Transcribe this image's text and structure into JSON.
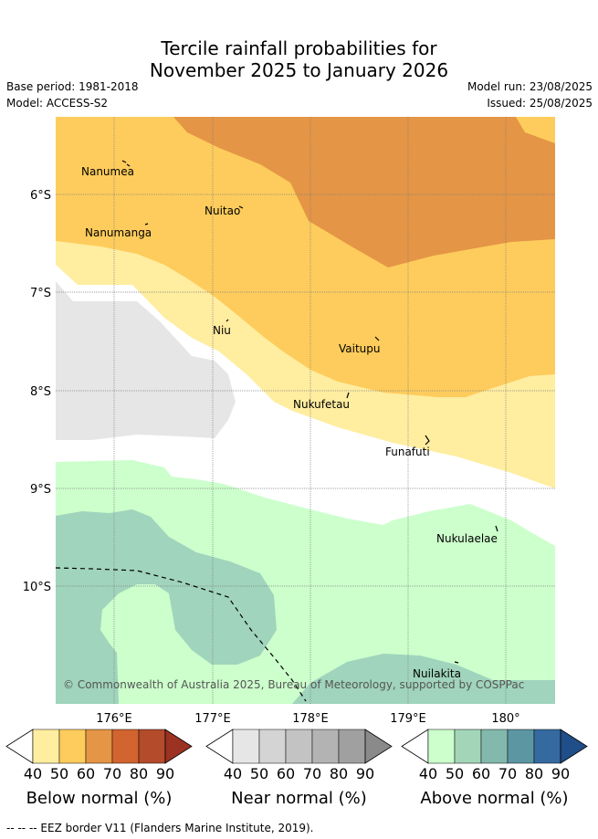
{
  "title": {
    "line1": "Tercile rainfall probabilities for",
    "line2": "November 2025 to January 2026"
  },
  "meta": {
    "base_period": "Base period: 1981-2018",
    "model": "Model: ACCESS-S2",
    "model_run": "Model run: 23/08/2025",
    "issued": "Issued: 25/08/2025"
  },
  "map": {
    "lat_labels": [
      "6°S",
      "7°S",
      "8°S",
      "9°S",
      "10°S"
    ],
    "lon_labels": [
      "176°E",
      "177°E",
      "178°E",
      "179°E",
      "180°"
    ],
    "places": [
      {
        "name": "Nanumea"
      },
      {
        "name": "Nuitao"
      },
      {
        "name": "Nanumanga"
      },
      {
        "name": "Niu"
      },
      {
        "name": "Vaitupu"
      },
      {
        "name": "Nukufetau"
      },
      {
        "name": "Funafuti"
      },
      {
        "name": "Nukulaelae"
      },
      {
        "name": "Nuilakita"
      }
    ],
    "copyright": "© Commonwealth of Australia 2025, Bureau of Meteorology, supported by COSPPac"
  },
  "legends": [
    {
      "title": "Below normal (%)",
      "ticks": [
        "40",
        "50",
        "60",
        "70",
        "80",
        "90"
      ],
      "colors": [
        "#ffffff",
        "#ffeda0",
        "#fecc5c",
        "#e49545",
        "#d2642f",
        "#b44b2a",
        "#9c3222"
      ]
    },
    {
      "title": "Near normal (%)",
      "ticks": [
        "40",
        "50",
        "60",
        "70",
        "80",
        "90"
      ],
      "colors": [
        "#ffffff",
        "#e6e6e6",
        "#d4d4d4",
        "#c3c3c3",
        "#b3b3b3",
        "#a0a0a0",
        "#8a8a8a"
      ]
    },
    {
      "title": "Above normal (%)",
      "ticks": [
        "40",
        "50",
        "60",
        "70",
        "80",
        "90"
      ],
      "colors": [
        "#ffffff",
        "#ccffcc",
        "#a3d6b8",
        "#83b8ac",
        "#5c96a2",
        "#356aa0",
        "#1f4e88"
      ]
    }
  ],
  "footer": {
    "eez_note": "-- -- -- EEZ border V11 (Flanders Marine Institute, 2019)."
  }
}
